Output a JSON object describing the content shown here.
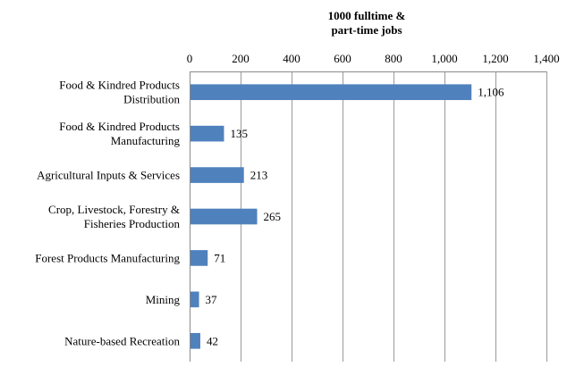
{
  "chart_data": {
    "type": "bar",
    "orientation": "horizontal",
    "title": "",
    "xlabel": "1000 fulltime & part-time jobs",
    "xlabel_lines": [
      "1000 fulltime &",
      "part-time jobs"
    ],
    "ylabel": "",
    "xlim": [
      0,
      1400
    ],
    "x_ticks": [
      0,
      200,
      400,
      600,
      800,
      1000,
      1200,
      1400
    ],
    "x_tick_labels": [
      "0",
      "200",
      "400",
      "600",
      "800",
      "1,000",
      "1,200",
      "1,400"
    ],
    "x_axis_position": "top",
    "grid": true,
    "legend": "none",
    "bar_color": "#4f81bd",
    "categories": [
      "Food & Kindred Products Distribution",
      "Food & Kindred Products Manufacturing",
      "Agricultural Inputs & Services",
      "Crop, Livestock, Forestry & Fisheries Production",
      "Forest Products Manufacturing",
      "Mining",
      "Nature-based Recreation"
    ],
    "category_lines": [
      [
        "Food & Kindred Products",
        "Distribution"
      ],
      [
        "Food & Kindred Products",
        "Manufacturing"
      ],
      [
        "Agricultural Inputs & Services"
      ],
      [
        "Crop, Livestock, Forestry &",
        "Fisheries Production"
      ],
      [
        "Forest Products Manufacturing"
      ],
      [
        "Mining"
      ],
      [
        "Nature-based Recreation"
      ]
    ],
    "values": [
      1106,
      135,
      213,
      265,
      71,
      37,
      42
    ],
    "value_labels": [
      "1,106",
      "135",
      "213",
      "265",
      "71",
      "37",
      "42"
    ]
  }
}
